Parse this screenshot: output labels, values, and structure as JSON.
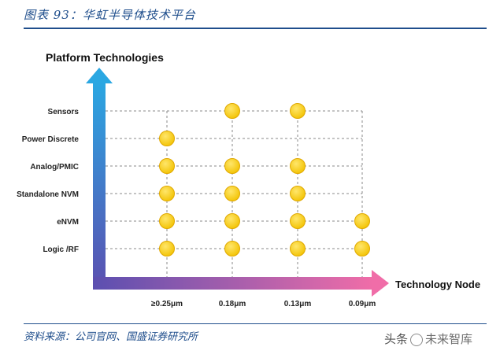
{
  "figure": {
    "title": "图表 93：华虹半导体技术平台",
    "source": "资料来源：公司官网、国盛证券研究所",
    "watermark_left": "头条",
    "watermark_right": "未来智库"
  },
  "chart_data": {
    "type": "scatter",
    "ylabel": "Platform Technologies",
    "xlabel": "Technology Node",
    "x_categories": [
      "≥0.25μm",
      "0.18μm",
      "0.13μm",
      "0.09μm"
    ],
    "y_categories": [
      "Logic /RF",
      "eNVM",
      "Standalone NVM",
      "Analog/PMIC",
      "Power Discrete",
      "Sensors"
    ],
    "points": [
      {
        "x": "≥0.25μm",
        "y": "Logic /RF"
      },
      {
        "x": "≥0.25μm",
        "y": "eNVM"
      },
      {
        "x": "≥0.25μm",
        "y": "Standalone NVM"
      },
      {
        "x": "≥0.25μm",
        "y": "Analog/PMIC"
      },
      {
        "x": "≥0.25μm",
        "y": "Power Discrete"
      },
      {
        "x": "0.18μm",
        "y": "Logic /RF"
      },
      {
        "x": "0.18μm",
        "y": "eNVM"
      },
      {
        "x": "0.18μm",
        "y": "Standalone NVM"
      },
      {
        "x": "0.18μm",
        "y": "Analog/PMIC"
      },
      {
        "x": "0.18μm",
        "y": "Sensors"
      },
      {
        "x": "0.13μm",
        "y": "Logic /RF"
      },
      {
        "x": "0.13μm",
        "y": "eNVM"
      },
      {
        "x": "0.13μm",
        "y": "Standalone NVM"
      },
      {
        "x": "0.13μm",
        "y": "Analog/PMIC"
      },
      {
        "x": "0.13μm",
        "y": "Sensors"
      },
      {
        "x": "0.09μm",
        "y": "Logic /RF"
      },
      {
        "x": "0.09μm",
        "y": "eNVM"
      }
    ],
    "grid": true,
    "marker_color": "#F7D117",
    "marker_edge_color": "#E0A800",
    "axis_gradient": [
      "#2AA7E2",
      "#5B4FB0",
      "#F06DA8"
    ]
  }
}
